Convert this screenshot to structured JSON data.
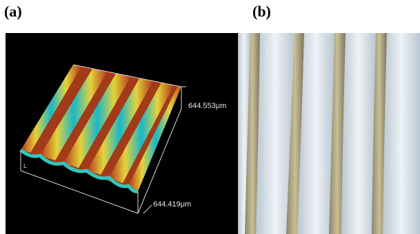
{
  "figure": {
    "panels": [
      {
        "id": "a",
        "label": "(a)",
        "dimension_y": "644.553μm",
        "dimension_x": "644.419μm",
        "axis_tick": "L",
        "colors": {
          "ridge_low": "#b0361c",
          "ridge_mid": "#e6d23a",
          "ridge_high": "#18b7c9",
          "background": "#000000"
        }
      },
      {
        "id": "b",
        "label": "(b)",
        "colors": {
          "stripe_light": "#eef2f6",
          "stripe_dark": "#7a7560",
          "background": "#9aa7b2"
        }
      }
    ]
  }
}
